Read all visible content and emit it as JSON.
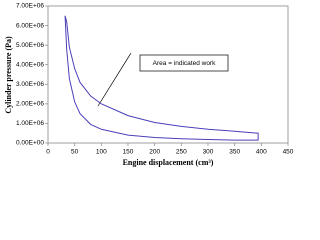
{
  "chart_data": {
    "type": "line",
    "xlabel": "Engine displacement (cm³)",
    "ylabel": "Cylinder pressure (Pa)",
    "annotation": "Area = indicated work",
    "x": [
      32,
      35,
      40,
      50,
      60,
      80,
      100,
      150,
      200,
      250,
      300,
      350,
      394,
      394,
      350,
      300,
      250,
      200,
      150,
      100,
      80,
      60,
      50,
      40,
      35,
      32
    ],
    "values": [
      6500000,
      6200000,
      4900000,
      3800000,
      3100000,
      2400000,
      2000000,
      1400000,
      1050000,
      850000,
      700000,
      600000,
      500000,
      150000,
      150000,
      180000,
      220000,
      280000,
      400000,
      700000,
      950000,
      1500000,
      2100000,
      3300000,
      4800000,
      6500000
    ],
    "color": "#4a3fb8",
    "xlim": [
      0,
      450
    ],
    "xticks": [
      0,
      50,
      100,
      150,
      200,
      250,
      300,
      350,
      400,
      450
    ],
    "ylim": [
      0,
      7000000
    ],
    "yticks": [
      {
        "value": 0,
        "label": "0.00E+00"
      },
      {
        "value": 1000000,
        "label": "1.00E+06"
      },
      {
        "value": 2000000,
        "label": "2.00E+06"
      },
      {
        "value": 3000000,
        "label": "3.00E+06"
      },
      {
        "value": 4000000,
        "label": "4.00E+06"
      },
      {
        "value": 5000000,
        "label": "5.00E+06"
      },
      {
        "value": 6000000,
        "label": "6.00E+06"
      },
      {
        "value": 7000000,
        "label": "7.00E+06"
      }
    ],
    "grid": false
  }
}
